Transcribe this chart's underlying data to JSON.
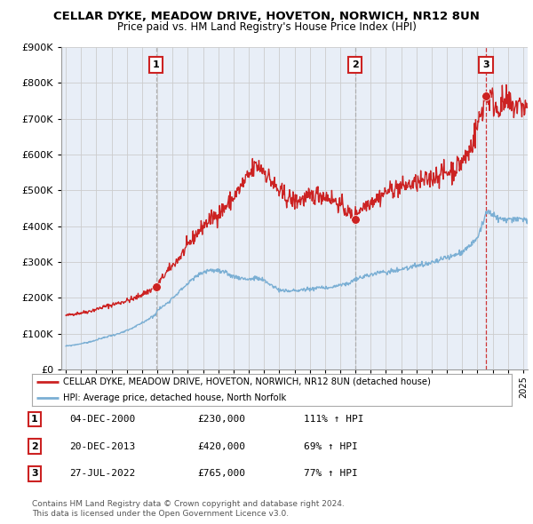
{
  "title": "CELLAR DYKE, MEADOW DRIVE, HOVETON, NORWICH, NR12 8UN",
  "subtitle": "Price paid vs. HM Land Registry's House Price Index (HPI)",
  "legend_line1": "CELLAR DYKE, MEADOW DRIVE, HOVETON, NORWICH, NR12 8UN (detached house)",
  "legend_line2": "HPI: Average price, detached house, North Norfolk",
  "footer1": "Contains HM Land Registry data © Crown copyright and database right 2024.",
  "footer2": "This data is licensed under the Open Government Licence v3.0.",
  "sales": [
    {
      "num": 1,
      "date": "04-DEC-2000",
      "price": "£230,000",
      "pct": "111% ↑ HPI",
      "year": 2000.92,
      "value": 230000
    },
    {
      "num": 2,
      "date": "20-DEC-2013",
      "price": "£420,000",
      "pct": "69% ↑ HPI",
      "year": 2013.97,
      "value": 420000
    },
    {
      "num": 3,
      "date": "27-JUL-2022",
      "price": "£765,000",
      "pct": "77% ↑ HPI",
      "year": 2022.57,
      "value": 765000
    }
  ],
  "red_line_color": "#cc2222",
  "blue_line_color": "#7bafd4",
  "grid_color": "#cccccc",
  "chart_bg_color": "#e8eef7",
  "background_color": "#ffffff",
  "ylim": [
    0,
    900000
  ],
  "xlim_start": 1994.7,
  "xlim_end": 2025.3
}
